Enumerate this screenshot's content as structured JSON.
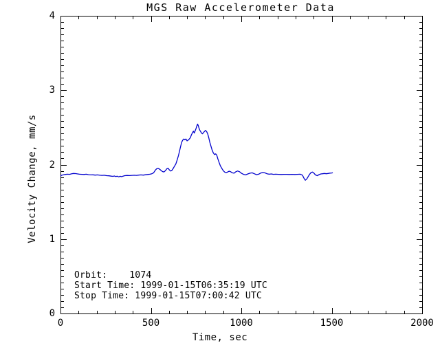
{
  "page": {
    "background_color": "#ffffff",
    "text_color": "#000000"
  },
  "chart_data": {
    "type": "line",
    "title": "MGS Raw Accelerometer Data",
    "xlabel": "Time, sec",
    "ylabel": "Velocity Change, mm/s",
    "xlim": [
      0,
      2000
    ],
    "ylim": [
      0,
      4
    ],
    "x_major_ticks": [
      0,
      500,
      1000,
      1500,
      2000
    ],
    "x_minor_interval": 100,
    "y_major_ticks": [
      0,
      1,
      2,
      3,
      4
    ],
    "y_minor_divisions": 12,
    "grid": "off",
    "legend": "none",
    "line_color": "#0000cd",
    "axis_color": "#000000",
    "series": [
      {
        "name": "velocity-change",
        "points": [
          [
            0,
            1.845
          ],
          [
            6,
            1.858
          ],
          [
            15,
            1.862
          ],
          [
            25,
            1.868
          ],
          [
            38,
            1.872
          ],
          [
            50,
            1.87
          ],
          [
            60,
            1.876
          ],
          [
            72,
            1.882
          ],
          [
            84,
            1.88
          ],
          [
            95,
            1.875
          ],
          [
            105,
            1.872
          ],
          [
            118,
            1.87
          ],
          [
            130,
            1.868
          ],
          [
            142,
            1.872
          ],
          [
            155,
            1.865
          ],
          [
            168,
            1.862
          ],
          [
            180,
            1.863
          ],
          [
            192,
            1.86
          ],
          [
            205,
            1.862
          ],
          [
            218,
            1.858
          ],
          [
            230,
            1.856
          ],
          [
            242,
            1.858
          ],
          [
            255,
            1.852
          ],
          [
            268,
            1.85
          ],
          [
            280,
            1.846
          ],
          [
            290,
            1.843
          ],
          [
            298,
            1.848
          ],
          [
            306,
            1.84
          ],
          [
            314,
            1.845
          ],
          [
            322,
            1.836
          ],
          [
            330,
            1.844
          ],
          [
            338,
            1.838
          ],
          [
            346,
            1.846
          ],
          [
            355,
            1.852
          ],
          [
            368,
            1.855
          ],
          [
            382,
            1.853
          ],
          [
            395,
            1.856
          ],
          [
            408,
            1.858
          ],
          [
            420,
            1.856
          ],
          [
            432,
            1.86
          ],
          [
            445,
            1.862
          ],
          [
            458,
            1.86
          ],
          [
            470,
            1.864
          ],
          [
            482,
            1.868
          ],
          [
            495,
            1.872
          ],
          [
            505,
            1.878
          ],
          [
            515,
            1.89
          ],
          [
            525,
            1.928
          ],
          [
            532,
            1.945
          ],
          [
            540,
            1.95
          ],
          [
            548,
            1.94
          ],
          [
            556,
            1.922
          ],
          [
            564,
            1.908
          ],
          [
            572,
            1.902
          ],
          [
            580,
            1.918
          ],
          [
            588,
            1.945
          ],
          [
            595,
            1.952
          ],
          [
            602,
            1.93
          ],
          [
            608,
            1.915
          ],
          [
            615,
            1.92
          ],
          [
            622,
            1.945
          ],
          [
            630,
            1.978
          ],
          [
            638,
            2.01
          ],
          [
            645,
            2.06
          ],
          [
            652,
            2.12
          ],
          [
            658,
            2.18
          ],
          [
            664,
            2.24
          ],
          [
            670,
            2.3
          ],
          [
            676,
            2.33
          ],
          [
            682,
            2.345
          ],
          [
            688,
            2.335
          ],
          [
            694,
            2.345
          ],
          [
            700,
            2.32
          ],
          [
            706,
            2.33
          ],
          [
            712,
            2.345
          ],
          [
            718,
            2.36
          ],
          [
            724,
            2.4
          ],
          [
            730,
            2.43
          ],
          [
            735,
            2.45
          ],
          [
            740,
            2.425
          ],
          [
            745,
            2.455
          ],
          [
            750,
            2.49
          ],
          [
            754,
            2.52
          ],
          [
            758,
            2.545
          ],
          [
            762,
            2.525
          ],
          [
            766,
            2.49
          ],
          [
            770,
            2.465
          ],
          [
            775,
            2.445
          ],
          [
            780,
            2.425
          ],
          [
            785,
            2.415
          ],
          [
            790,
            2.43
          ],
          [
            796,
            2.445
          ],
          [
            802,
            2.46
          ],
          [
            808,
            2.445
          ],
          [
            814,
            2.415
          ],
          [
            820,
            2.36
          ],
          [
            826,
            2.3
          ],
          [
            832,
            2.25
          ],
          [
            838,
            2.2
          ],
          [
            845,
            2.16
          ],
          [
            852,
            2.135
          ],
          [
            858,
            2.145
          ],
          [
            864,
            2.13
          ],
          [
            870,
            2.08
          ],
          [
            877,
            2.03
          ],
          [
            884,
            1.985
          ],
          [
            892,
            1.95
          ],
          [
            900,
            1.92
          ],
          [
            908,
            1.9
          ],
          [
            916,
            1.892
          ],
          [
            925,
            1.902
          ],
          [
            933,
            1.912
          ],
          [
            941,
            1.905
          ],
          [
            950,
            1.89
          ],
          [
            960,
            1.885
          ],
          [
            970,
            1.905
          ],
          [
            980,
            1.915
          ],
          [
            990,
            1.905
          ],
          [
            1000,
            1.885
          ],
          [
            1012,
            1.87
          ],
          [
            1024,
            1.862
          ],
          [
            1036,
            1.875
          ],
          [
            1048,
            1.885
          ],
          [
            1060,
            1.89
          ],
          [
            1072,
            1.878
          ],
          [
            1084,
            1.865
          ],
          [
            1096,
            1.872
          ],
          [
            1108,
            1.888
          ],
          [
            1120,
            1.895
          ],
          [
            1130,
            1.89
          ],
          [
            1142,
            1.878
          ],
          [
            1154,
            1.872
          ],
          [
            1166,
            1.875
          ],
          [
            1178,
            1.87
          ],
          [
            1190,
            1.872
          ],
          [
            1205,
            1.87
          ],
          [
            1220,
            1.868
          ],
          [
            1235,
            1.87
          ],
          [
            1250,
            1.87
          ],
          [
            1265,
            1.868
          ],
          [
            1280,
            1.87
          ],
          [
            1295,
            1.868
          ],
          [
            1310,
            1.87
          ],
          [
            1325,
            1.872
          ],
          [
            1338,
            1.86
          ],
          [
            1346,
            1.82
          ],
          [
            1354,
            1.79
          ],
          [
            1362,
            1.808
          ],
          [
            1370,
            1.84
          ],
          [
            1378,
            1.872
          ],
          [
            1386,
            1.895
          ],
          [
            1394,
            1.9
          ],
          [
            1402,
            1.885
          ],
          [
            1410,
            1.862
          ],
          [
            1420,
            1.852
          ],
          [
            1430,
            1.866
          ],
          [
            1440,
            1.875
          ],
          [
            1450,
            1.878
          ],
          [
            1460,
            1.882
          ],
          [
            1470,
            1.878
          ],
          [
            1480,
            1.882
          ],
          [
            1490,
            1.886
          ],
          [
            1500,
            1.888
          ],
          [
            1506,
            1.892
          ]
        ]
      }
    ],
    "annotations": {
      "lines": [
        "Orbit:    1074",
        "Start Time: 1999-01-15T06:35:19 UTC",
        "Stop Time: 1999-01-15T07:00:42 UTC"
      ]
    }
  }
}
